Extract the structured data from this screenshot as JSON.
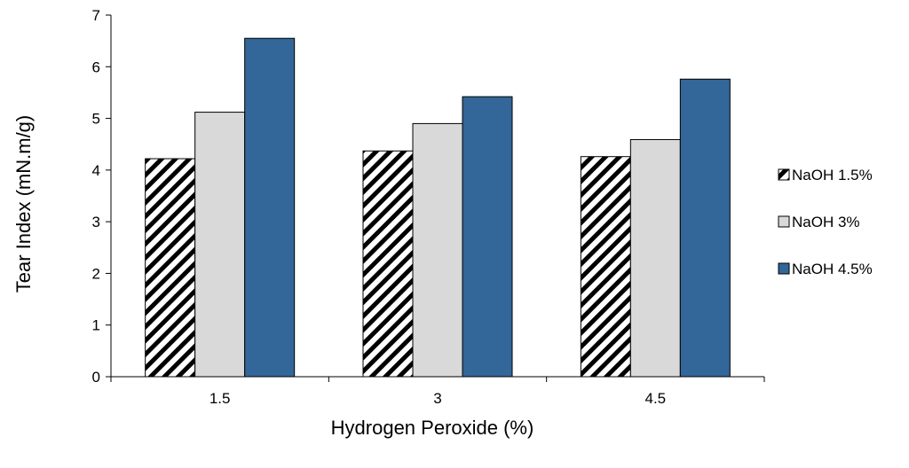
{
  "chart_data": {
    "type": "bar",
    "title": "",
    "xlabel": "Hydrogen Peroxide (%)",
    "ylabel": "Tear Index (mN.m/g)",
    "categories": [
      "1.5",
      "3",
      "4.5"
    ],
    "ylim": [
      0,
      7
    ],
    "yticks": [
      "0",
      "1",
      "2",
      "3",
      "4",
      "5",
      "6",
      "7"
    ],
    "grid": false,
    "legend_position": "right",
    "series": [
      {
        "name": "NaOH 1.5%",
        "values": [
          4.22,
          4.37,
          4.26
        ],
        "fill": "hatched",
        "color": "#000000"
      },
      {
        "name": "NaOH 3%",
        "values": [
          5.12,
          4.9,
          4.59
        ],
        "fill": "solid",
        "color": "#d9d9d9"
      },
      {
        "name": "NaOH 4.5%",
        "values": [
          6.55,
          5.42,
          5.76
        ],
        "fill": "solid",
        "color": "#336699"
      }
    ]
  }
}
